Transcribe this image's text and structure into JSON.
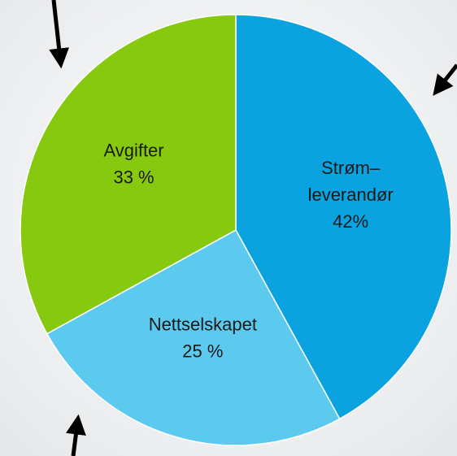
{
  "chart_data": {
    "type": "pie",
    "categories": [
      "Strøm–\nleverandør",
      "Nettselskapet",
      "Avgifter"
    ],
    "values": [
      42,
      25,
      33
    ],
    "value_labels": [
      "42%",
      "25 %",
      "33 %"
    ],
    "colors": [
      "#0aa3df",
      "#5cc9ef",
      "#86c90f"
    ]
  }
}
